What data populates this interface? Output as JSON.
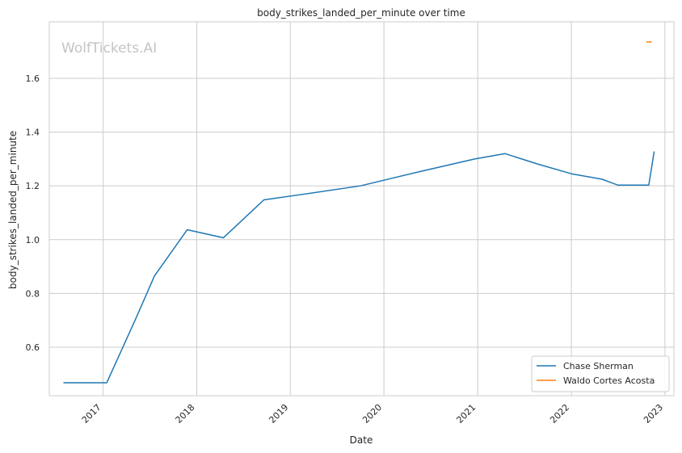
{
  "chart_data": {
    "type": "line",
    "title": "body_strikes_landed_per_minute over time",
    "xlabel": "Date",
    "ylabel": "body_strikes_landed_per_minute",
    "watermark": "WolfTickets.AI",
    "x_ticks": [
      "2017",
      "2018",
      "2019",
      "2020",
      "2021",
      "2022",
      "2023"
    ],
    "y_ticks": [
      "0.6",
      "0.8",
      "1.0",
      "1.2",
      "1.4",
      "1.6"
    ],
    "ylim": [
      0.42,
      1.81
    ],
    "xlim": [
      "2016-06-05",
      "2023-02-05"
    ],
    "grid": true,
    "legend_position": "bottom-right",
    "series": [
      {
        "name": "Chase Sherman",
        "color": "#1f77b4",
        "x": [
          "2016-07-30",
          "2017-01-15",
          "2017-05-10",
          "2017-07-20",
          "2017-11-25",
          "2018-04-15",
          "2018-09-20",
          "2019-03-01",
          "2019-10-01",
          "2020-05-15",
          "2020-12-20",
          "2021-04-17",
          "2021-08-20",
          "2022-01-01",
          "2022-04-30",
          "2022-07-01",
          "2022-10-30",
          "2022-11-20"
        ],
        "y": [
          0.468,
          0.468,
          0.71,
          0.865,
          1.037,
          1.007,
          1.148,
          1.17,
          1.2,
          1.252,
          1.3,
          1.32,
          1.282,
          1.245,
          1.225,
          1.203,
          1.203,
          1.328
        ]
      },
      {
        "name": "Waldo Cortes Acosta",
        "color": "#ff7f0e",
        "x": [
          "2022-10-20",
          "2022-11-10"
        ],
        "y": [
          1.735,
          1.735
        ]
      }
    ]
  }
}
